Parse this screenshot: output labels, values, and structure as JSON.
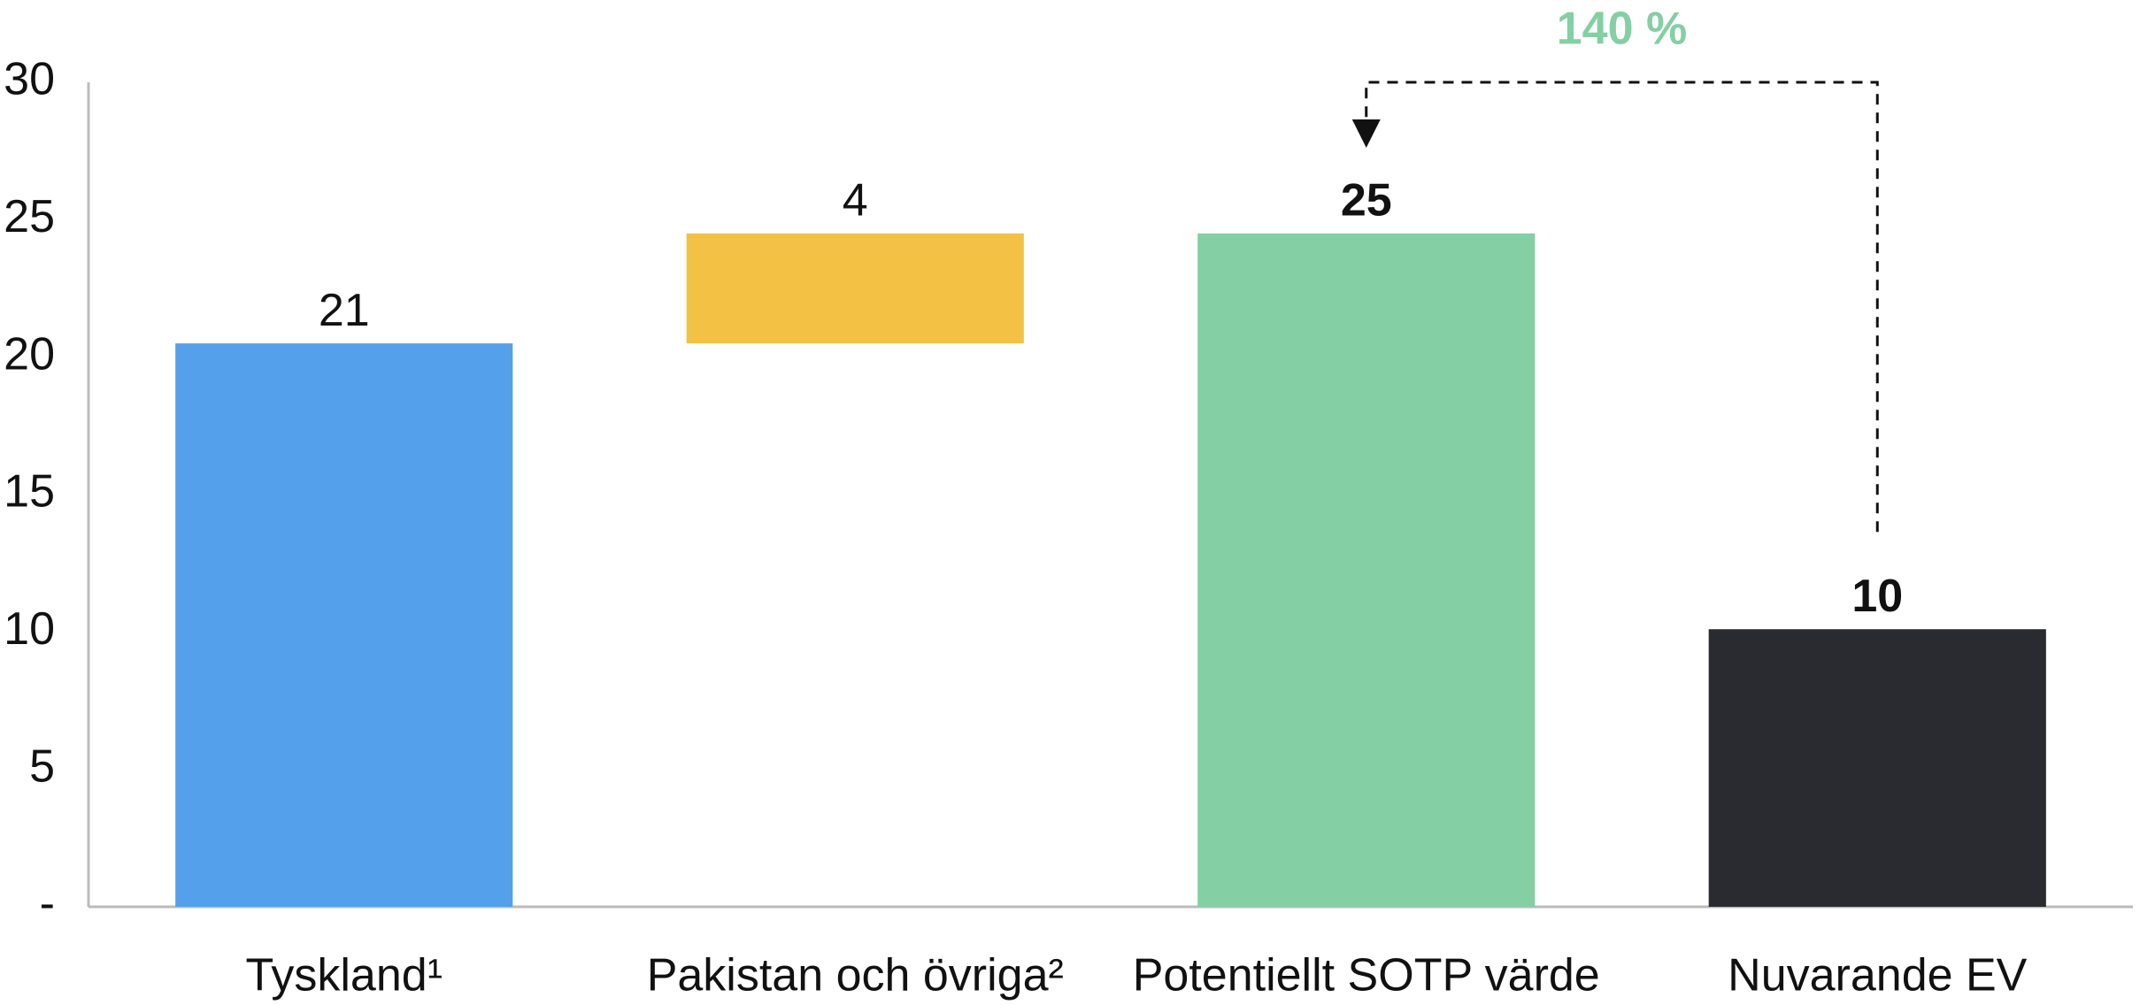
{
  "chart_data": {
    "type": "waterfall",
    "categories": [
      "Tyskland¹",
      "Pakistan och övriga²",
      "Potentiellt SOTP värde",
      "Nuvarande EV"
    ],
    "values": [
      20.5,
      4,
      24.5,
      10.1
    ],
    "value_labels": [
      "21",
      "4",
      "25",
      "10"
    ],
    "measures": [
      "absolute",
      "relative",
      "total",
      "absolute"
    ],
    "colors": [
      "#55a0ea",
      "#f3c244",
      "#84cfa4",
      "#2a2b30"
    ],
    "value_label_bold": [
      false,
      false,
      true,
      true
    ],
    "annotation": "140 %",
    "annotation_color": "#84cfa4",
    "ylim": [
      0,
      30
    ],
    "yticks": [
      {
        "value": 0,
        "label": "-"
      },
      5,
      10,
      15,
      20,
      25,
      30
    ],
    "grid": false
  }
}
